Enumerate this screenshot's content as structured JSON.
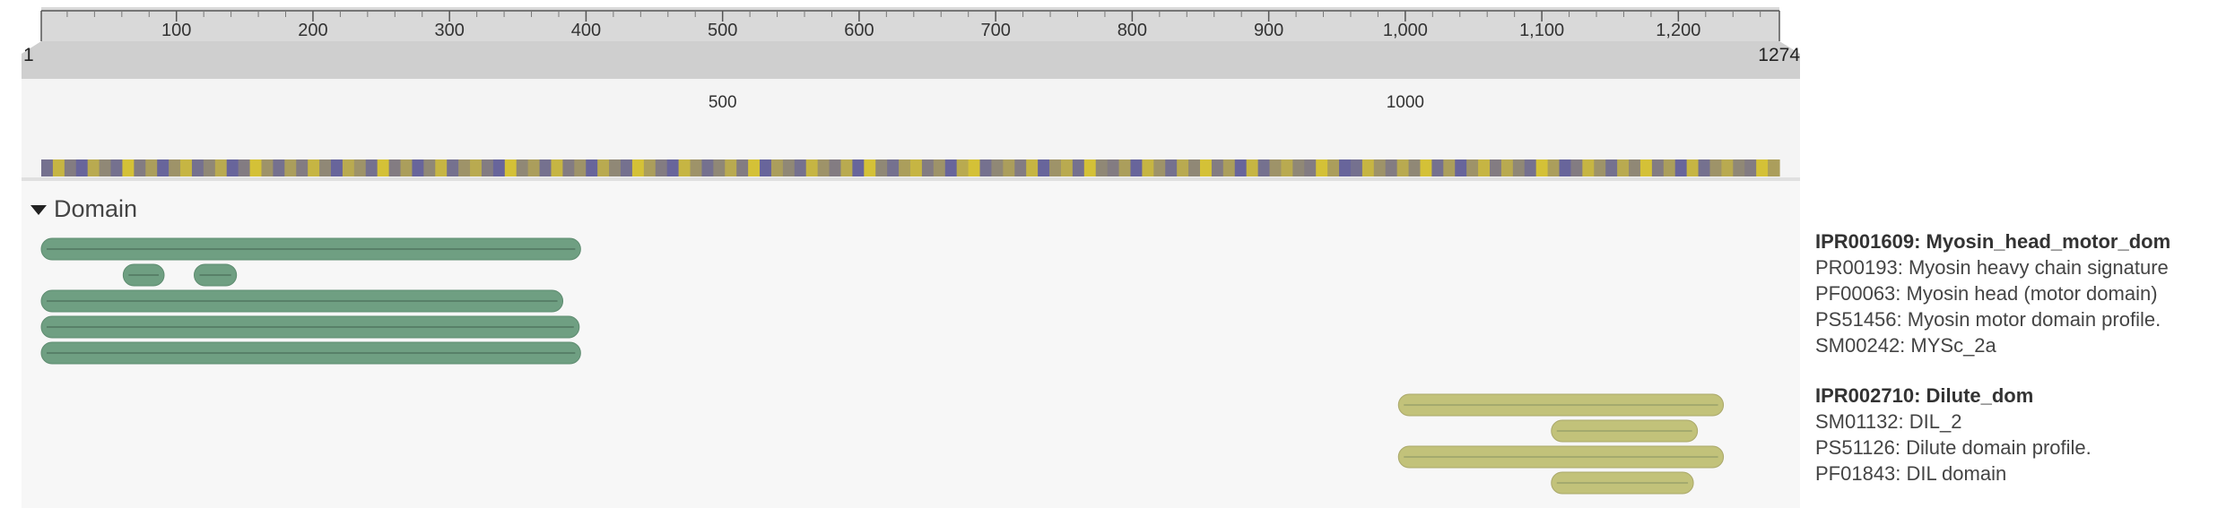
{
  "ruler": {
    "start_label": "1",
    "end_label": "1274",
    "length": 1274,
    "ticks": [
      "100",
      "200",
      "300",
      "400",
      "500",
      "600",
      "700",
      "800",
      "900",
      "1,000",
      "1,100",
      "1,200"
    ],
    "zoom_labels": [
      "500",
      "1000"
    ]
  },
  "section": {
    "title": "Domain",
    "expanded": true
  },
  "features": [
    {
      "id": "IPR001609",
      "start": 1,
      "end": 396,
      "lane": 0,
      "color": "#6f9f82"
    },
    {
      "id": "PR00193-a",
      "start": 61,
      "end": 91,
      "lane": 1,
      "color": "#6f9f82"
    },
    {
      "id": "PR00193-b",
      "start": 113,
      "end": 144,
      "lane": 1,
      "color": "#6f9f82"
    },
    {
      "id": "PF00063",
      "start": 1,
      "end": 383,
      "lane": 2,
      "color": "#6f9f82"
    },
    {
      "id": "PS51456",
      "start": 1,
      "end": 395,
      "lane": 3,
      "color": "#6f9f82"
    },
    {
      "id": "SM00242",
      "start": 1,
      "end": 396,
      "lane": 4,
      "color": "#6f9f82"
    },
    {
      "id": "IPR002710",
      "start": 995,
      "end": 1233,
      "lane": 6,
      "color": "#c2c27a"
    },
    {
      "id": "SM01132",
      "start": 1107,
      "end": 1214,
      "lane": 7,
      "color": "#c2c27a"
    },
    {
      "id": "PS51126",
      "start": 995,
      "end": 1233,
      "lane": 8,
      "color": "#c2c27a"
    },
    {
      "id": "PF01843",
      "start": 1107,
      "end": 1211,
      "lane": 9,
      "color": "#c2c27a"
    }
  ],
  "label_groups": [
    {
      "header": "IPR001609: Myosin_head_motor_dom",
      "items": [
        "PR00193: Myosin heavy chain signature",
        "PF00063: Myosin head (motor domain)",
        "PS51456: Myosin motor domain profile.",
        "SM00242: MYSc_2a"
      ]
    },
    {
      "header": "IPR002710: Dilute_dom",
      "items": [
        "SM01132: DIL_2",
        "PS51126: Dilute domain profile.",
        "PF01843: DIL domain"
      ]
    }
  ],
  "colors": {
    "green_feature": "#6f9f82",
    "olive_feature": "#c2c27a",
    "heat_low": "#5a5aa8",
    "heat_high": "#e1cc2a"
  },
  "heatmap_values": [
    0.2,
    0.8,
    0.3,
    0.1,
    0.7,
    0.4,
    0.2,
    0.9,
    0.3,
    0.6,
    0.1,
    0.5,
    0.8,
    0.2,
    0.4,
    0.7,
    0.1,
    0.3,
    0.9,
    0.5,
    0.2,
    0.6,
    0.3,
    0.8,
    0.4,
    0.1,
    0.7,
    0.5,
    0.2,
    0.9,
    0.3,
    0.6,
    0.1,
    0.4,
    0.8,
    0.2,
    0.5,
    0.7,
    0.3,
    0.1,
    0.9,
    0.4,
    0.6,
    0.2,
    0.8,
    0.3,
    0.5,
    0.1,
    0.7,
    0.4,
    0.2,
    0.9,
    0.6,
    0.3,
    0.1,
    0.8,
    0.5,
    0.2,
    0.4,
    0.7,
    0.3,
    0.9,
    0.1,
    0.6,
    0.4,
    0.2,
    0.8,
    0.5,
    0.3,
    0.7,
    0.1,
    0.9,
    0.4,
    0.2,
    0.6,
    0.8,
    0.3,
    0.5,
    0.1,
    0.7,
    0.9,
    0.2,
    0.4,
    0.6,
    0.3,
    0.8,
    0.1,
    0.5,
    0.7,
    0.2,
    0.9,
    0.4,
    0.3,
    0.6,
    0.1,
    0.8,
    0.5,
    0.2,
    0.7,
    0.4,
    0.9,
    0.3,
    0.6,
    0.1,
    0.8,
    0.2,
    0.5,
    0.7,
    0.4,
    0.3,
    0.9,
    0.6,
    0.1,
    0.2,
    0.8,
    0.5,
    0.3,
    0.7,
    0.4,
    0.9,
    0.2,
    0.6,
    0.1,
    0.5,
    0.8,
    0.3,
    0.7,
    0.4,
    0.2,
    0.9,
    0.6,
    0.1,
    0.3,
    0.8,
    0.5,
    0.2,
    0.7,
    0.4,
    0.9,
    0.3,
    0.6,
    0.1,
    0.8,
    0.2,
    0.5,
    0.7,
    0.4,
    0.3,
    0.9,
    0.6
  ]
}
